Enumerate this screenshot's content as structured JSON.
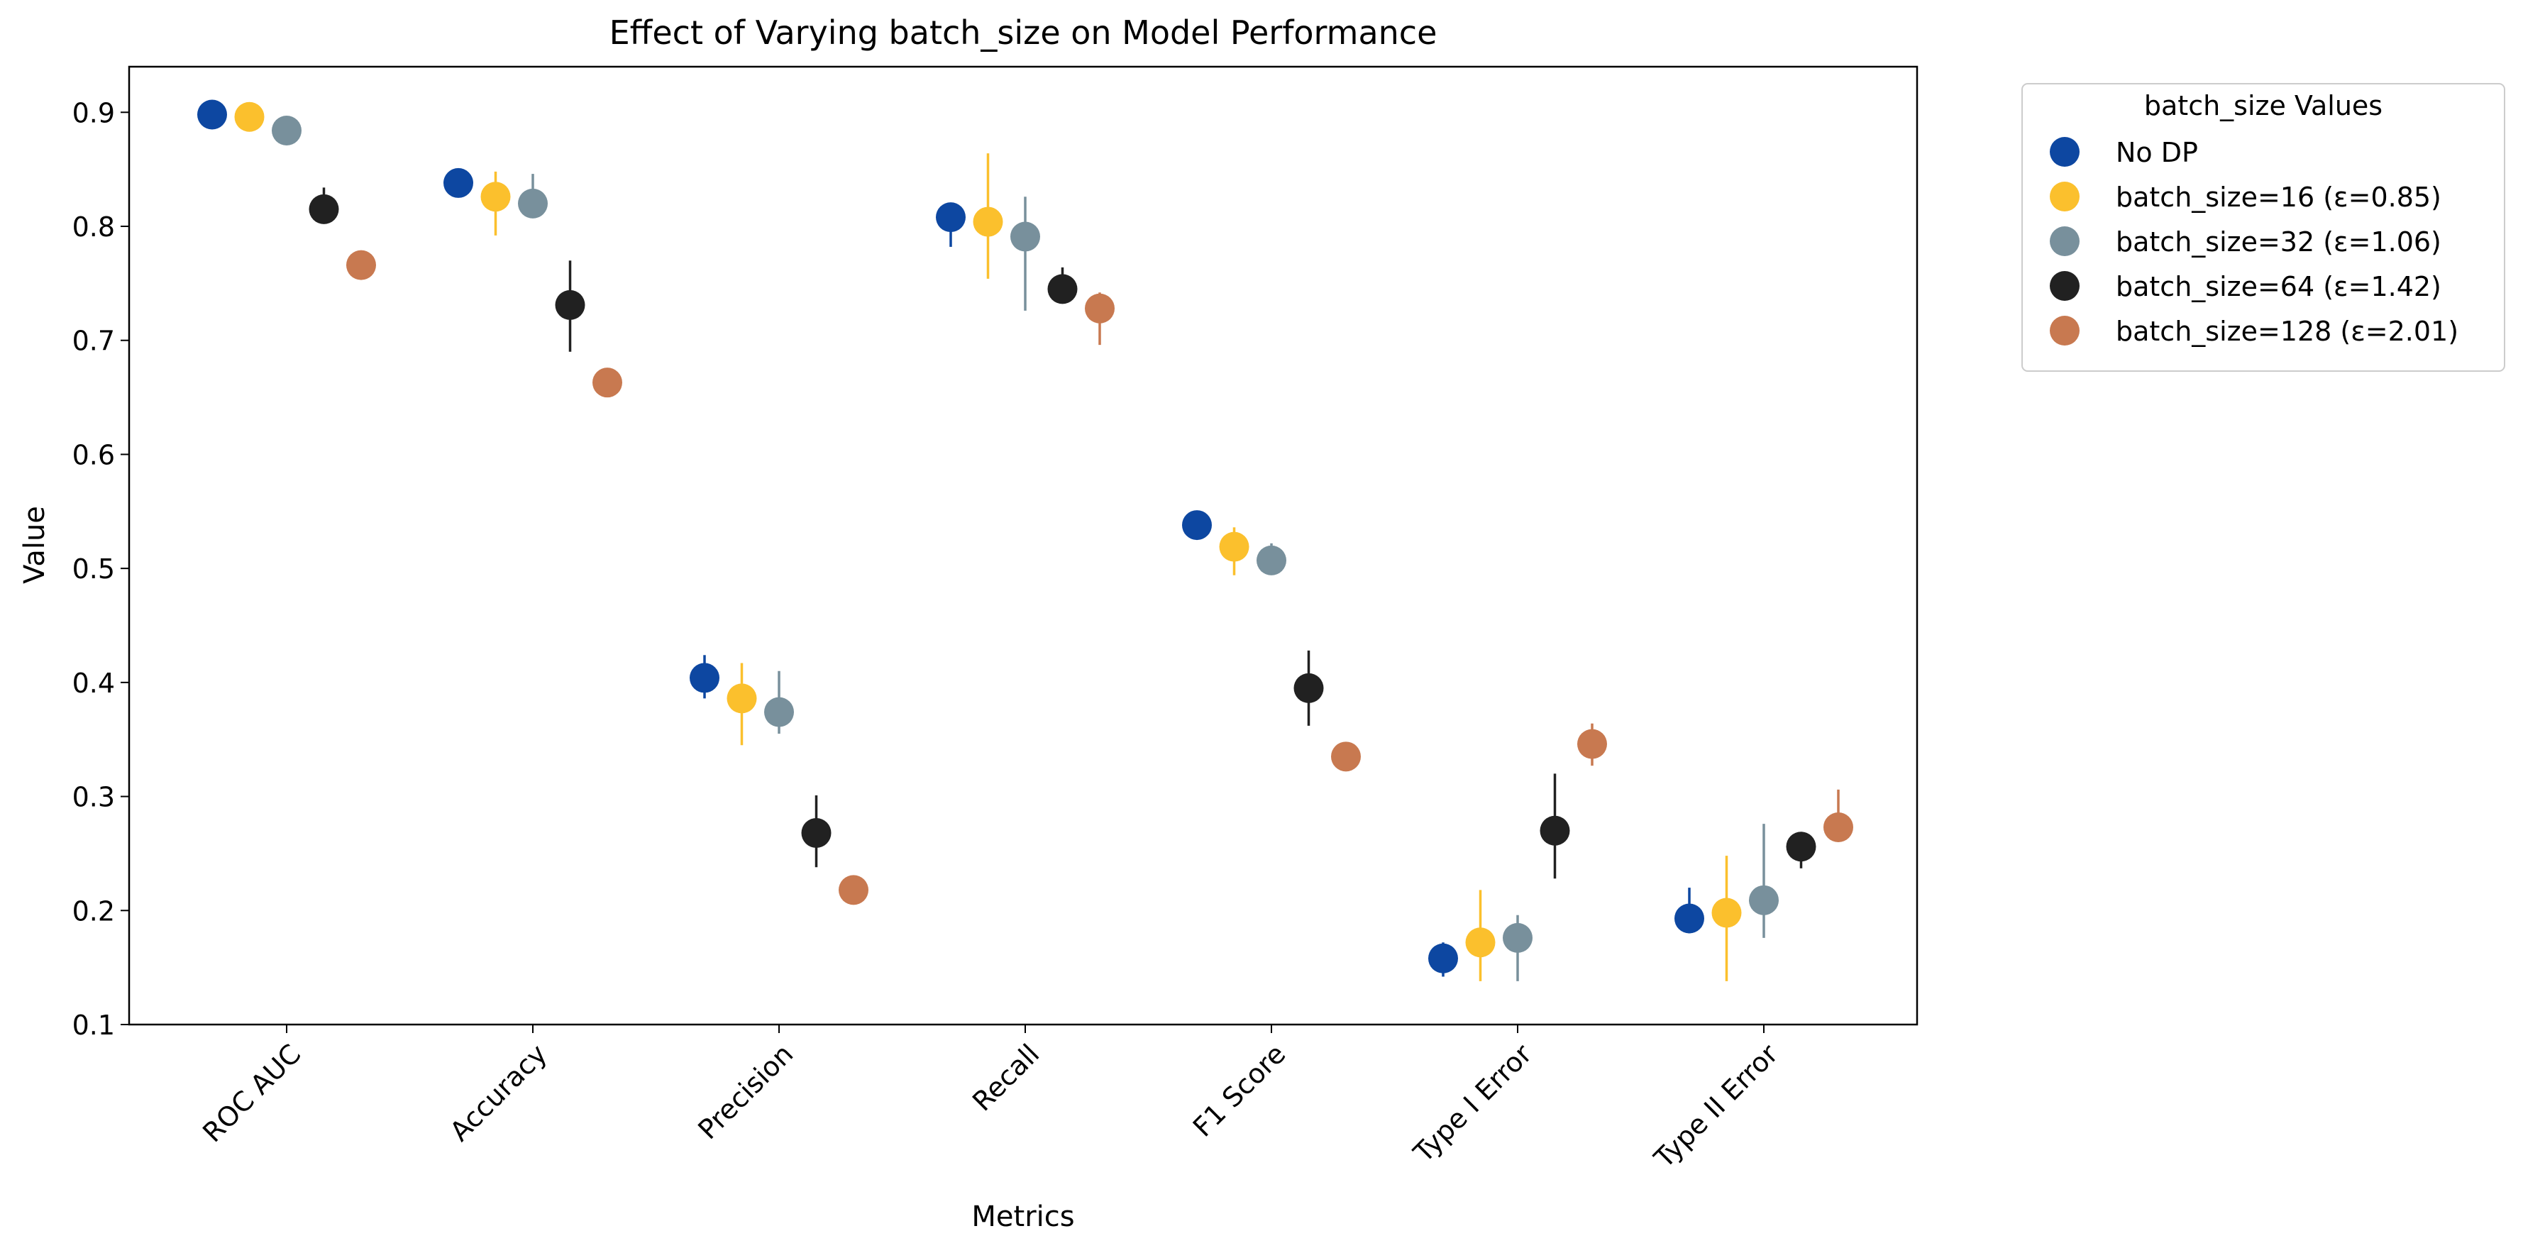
{
  "chart_data": {
    "type": "scatter",
    "title": "Effect of Varying batch_size on Model Performance",
    "xlabel": "Metrics",
    "ylabel": "Value",
    "ylim": [
      0.1,
      0.94
    ],
    "yticks": [
      "0.1",
      "0.2",
      "0.3",
      "0.4",
      "0.5",
      "0.6",
      "0.7",
      "0.8",
      "0.9"
    ],
    "categories": [
      "ROC AUC",
      "Accuracy",
      "Precision",
      "Recall",
      "F1 Score",
      "Type I Error",
      "Type II Error"
    ],
    "legend": {
      "title": "batch_size Values",
      "placement": "outside-top-right"
    },
    "series": [
      {
        "name": "No DP",
        "color": "#0d47a1",
        "values": [
          0.898,
          0.838,
          0.404,
          0.808,
          0.538,
          0.158,
          0.193
        ],
        "err_low": [
          0.898,
          0.838,
          0.386,
          0.782,
          0.538,
          0.142,
          0.18
        ],
        "err_high": [
          0.898,
          0.838,
          0.424,
          0.814,
          0.538,
          0.172,
          0.22
        ]
      },
      {
        "name": "batch_size=16 (ε=0.85)",
        "color": "#fbc02d",
        "values": [
          0.896,
          0.826,
          0.386,
          0.804,
          0.519,
          0.172,
          0.198
        ],
        "err_low": [
          0.896,
          0.792,
          0.345,
          0.754,
          0.494,
          0.138,
          0.138
        ],
        "err_high": [
          0.896,
          0.848,
          0.417,
          0.864,
          0.536,
          0.218,
          0.248
        ]
      },
      {
        "name": "batch_size=32 (ε=1.06)",
        "color": "#78909c",
        "values": [
          0.884,
          0.82,
          0.374,
          0.791,
          0.507,
          0.176,
          0.209
        ],
        "err_low": [
          0.884,
          0.82,
          0.355,
          0.726,
          0.5,
          0.138,
          0.176
        ],
        "err_high": [
          0.884,
          0.846,
          0.41,
          0.826,
          0.522,
          0.196,
          0.276
        ]
      },
      {
        "name": "batch_size=64 (ε=1.42)",
        "color": "#212121",
        "values": [
          0.815,
          0.731,
          0.268,
          0.745,
          0.395,
          0.27,
          0.256
        ],
        "err_low": [
          0.815,
          0.69,
          0.238,
          0.745,
          0.362,
          0.228,
          0.237
        ],
        "err_high": [
          0.834,
          0.77,
          0.301,
          0.764,
          0.428,
          0.32,
          0.262
        ]
      },
      {
        "name": "batch_size=128 (ε=2.01)",
        "color": "#c87950",
        "values": [
          0.766,
          0.663,
          0.218,
          0.728,
          0.335,
          0.346,
          0.273
        ],
        "err_low": [
          0.766,
          0.663,
          0.218,
          0.696,
          0.335,
          0.327,
          0.265
        ],
        "err_high": [
          0.766,
          0.663,
          0.218,
          0.742,
          0.335,
          0.364,
          0.306
        ]
      }
    ]
  }
}
